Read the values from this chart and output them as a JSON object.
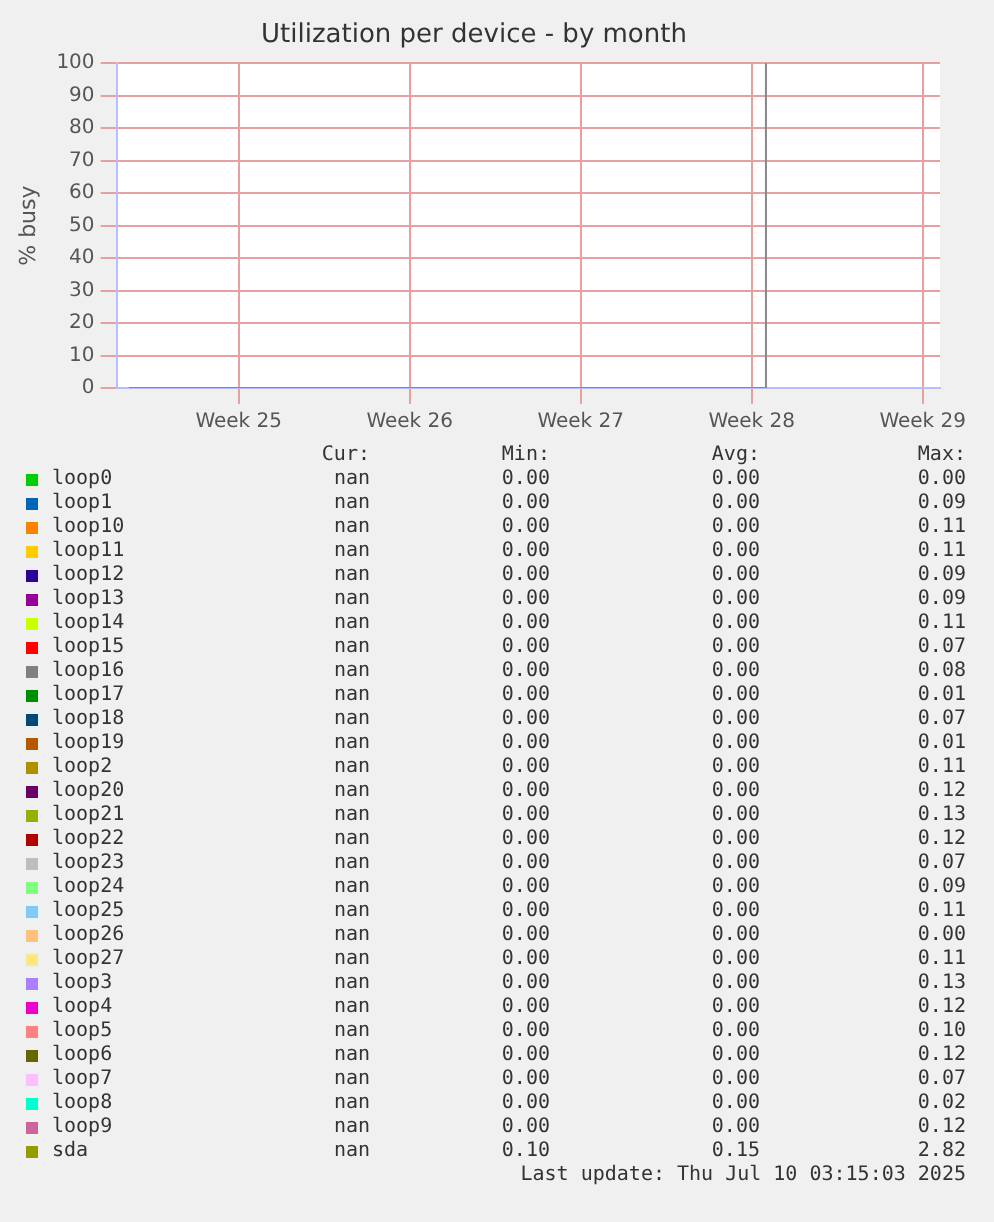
{
  "chart_data": {
    "type": "line",
    "title": "Utilization per device - by month",
    "ylabel": "% busy",
    "xlim": [
      "2025-06-11",
      "2025-07-14T17:00"
    ],
    "xticks": [
      {
        "value": "2025-06-16",
        "label": "Week 25"
      },
      {
        "value": "2025-06-23",
        "label": "Week 26"
      },
      {
        "value": "2025-06-30",
        "label": "Week 27"
      },
      {
        "value": "2025-07-07",
        "label": "Week 28"
      },
      {
        "value": "2025-07-14",
        "label": "Week 29"
      }
    ],
    "x": [
      "2025-06-11T12:00",
      "2025-07-07T14:00"
    ],
    "ylim": [
      0,
      100
    ],
    "yticks": [
      0,
      10,
      20,
      30,
      40,
      50,
      60,
      70,
      80,
      90,
      100
    ],
    "grid": true,
    "legend": "bottom",
    "ref_lines": [
      {
        "axis": "x",
        "value": "2025-07-07T14:00",
        "color": "#888888"
      }
    ],
    "series": [
      {
        "name": "loop0",
        "color": "#00cc00",
        "values": [
          null,
          null
        ]
      },
      {
        "name": "loop1",
        "color": "#0066b3",
        "values": [
          null,
          null
        ]
      },
      {
        "name": "loop10",
        "color": "#ff8000",
        "values": [
          null,
          null
        ]
      },
      {
        "name": "loop11",
        "color": "#ffcc00",
        "values": [
          null,
          null
        ]
      },
      {
        "name": "loop12",
        "color": "#330099",
        "values": [
          null,
          null
        ]
      },
      {
        "name": "loop13",
        "color": "#990099",
        "values": [
          null,
          null
        ]
      },
      {
        "name": "loop14",
        "color": "#ccff00",
        "values": [
          null,
          null
        ]
      },
      {
        "name": "loop15",
        "color": "#ff0000",
        "values": [
          null,
          null
        ]
      },
      {
        "name": "loop16",
        "color": "#808080",
        "values": [
          null,
          null
        ]
      },
      {
        "name": "loop17",
        "color": "#008f00",
        "values": [
          null,
          null
        ]
      },
      {
        "name": "loop18",
        "color": "#00487d",
        "values": [
          null,
          null
        ]
      },
      {
        "name": "loop19",
        "color": "#b35a00",
        "values": [
          null,
          null
        ]
      },
      {
        "name": "loop2",
        "color": "#b38f00",
        "values": [
          null,
          null
        ]
      },
      {
        "name": "loop20",
        "color": "#6b006b",
        "values": [
          null,
          null
        ]
      },
      {
        "name": "loop21",
        "color": "#8fb300",
        "values": [
          null,
          null
        ]
      },
      {
        "name": "loop22",
        "color": "#b30000",
        "values": [
          null,
          null
        ]
      },
      {
        "name": "loop23",
        "color": "#bebebe",
        "values": [
          null,
          null
        ]
      },
      {
        "name": "loop24",
        "color": "#80ff80",
        "values": [
          null,
          null
        ]
      },
      {
        "name": "loop25",
        "color": "#80c9ff",
        "values": [
          null,
          null
        ]
      },
      {
        "name": "loop26",
        "color": "#ffc080",
        "values": [
          null,
          null
        ]
      },
      {
        "name": "loop27",
        "color": "#ffe680",
        "values": [
          null,
          null
        ]
      },
      {
        "name": "loop3",
        "color": "#aa80ff",
        "values": [
          null,
          null
        ]
      },
      {
        "name": "loop4",
        "color": "#ee00cc",
        "values": [
          null,
          null
        ]
      },
      {
        "name": "loop5",
        "color": "#ff8080",
        "values": [
          null,
          null
        ]
      },
      {
        "name": "loop6",
        "color": "#666600",
        "values": [
          null,
          null
        ]
      },
      {
        "name": "loop7",
        "color": "#ffbfff",
        "values": [
          null,
          null
        ]
      },
      {
        "name": "loop8",
        "color": "#00ffcc",
        "values": [
          null,
          null
        ]
      },
      {
        "name": "loop9",
        "color": "#cc6699",
        "values": [
          null,
          null
        ]
      },
      {
        "name": "sda",
        "color": "#999900",
        "values": [
          0,
          0
        ]
      }
    ],
    "annotations": [
      "Cur:",
      "Min:",
      "Avg:",
      "Max:",
      "nan",
      "0.00",
      "0.00",
      "0.00",
      "nan",
      "0.00",
      "0.00",
      "0.09",
      "nan",
      "0.00",
      "0.00",
      "0.11",
      "nan",
      "0.00",
      "0.00",
      "0.11",
      "nan",
      "0.00",
      "0.00",
      "0.09",
      "nan",
      "0.00",
      "0.00",
      "0.09",
      "nan",
      "0.00",
      "0.00",
      "0.11",
      "nan",
      "0.00",
      "0.00",
      "0.07",
      "nan",
      "0.00",
      "0.00",
      "0.08",
      "nan",
      "0.00",
      "0.00",
      "0.01",
      "nan",
      "0.00",
      "0.00",
      "0.07",
      "nan",
      "0.00",
      "0.00",
      "0.01",
      "nan",
      "0.00",
      "0.00",
      "0.11",
      "nan",
      "0.00",
      "0.00",
      "0.12",
      "nan",
      "0.00",
      "0.00",
      "0.13",
      "nan",
      "0.00",
      "0.00",
      "0.12",
      "nan",
      "0.00",
      "0.00",
      "0.07",
      "nan",
      "0.00",
      "0.00",
      "0.09",
      "nan",
      "0.00",
      "0.00",
      "0.11",
      "nan",
      "0.00",
      "0.00",
      "0.00",
      "nan",
      "0.00",
      "0.00",
      "0.11",
      "nan",
      "0.00",
      "0.00",
      "0.13",
      "nan",
      "0.00",
      "0.00",
      "0.12",
      "nan",
      "0.00",
      "0.00",
      "0.10",
      "nan",
      "0.00",
      "0.00",
      "0.12",
      "nan",
      "0.00",
      "0.00",
      "0.07",
      "nan",
      "0.00",
      "0.00",
      "0.02",
      "nan",
      "0.00",
      "0.00",
      "0.12",
      "nan",
      "0.10",
      "0.15",
      "2.82",
      "Last update: Thu Jul 10 03:15:03 2025"
    ]
  }
}
